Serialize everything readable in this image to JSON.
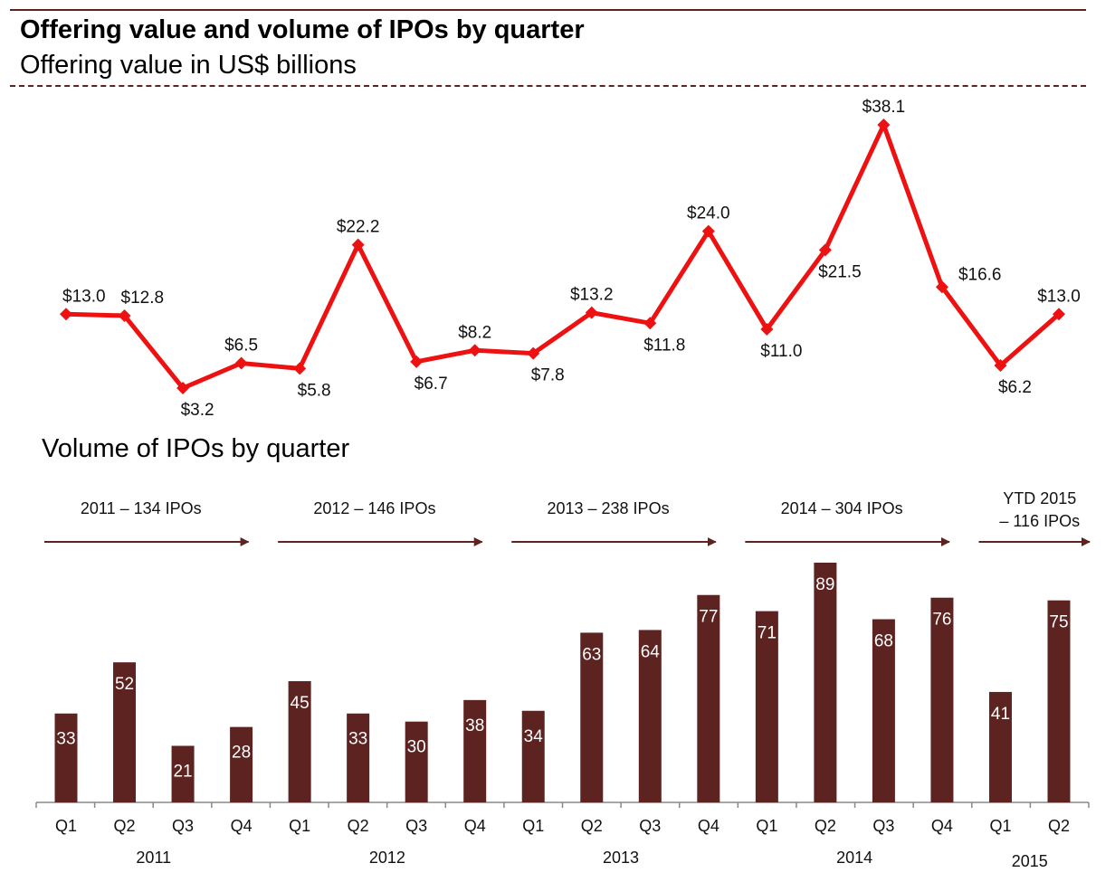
{
  "header": {
    "title": "Offering value and volume of IPOs by quarter",
    "subtitle": "Offering value in US$ billions"
  },
  "volume_section": {
    "title": "Volume of IPOs by quarter"
  },
  "colors": {
    "line": "#ee1111",
    "bar": "#5c2320",
    "rule": "#5c2320",
    "axis": "#888888",
    "bar_label": "#ffffff"
  },
  "chart_data": [
    {
      "type": "line",
      "title": "Offering value in US$ billions",
      "xlabel": "",
      "ylabel": "",
      "categories": [
        "2011 Q1",
        "2011 Q2",
        "2011 Q3",
        "2011 Q4",
        "2012 Q1",
        "2012 Q2",
        "2012 Q3",
        "2012 Q4",
        "2013 Q1",
        "2013 Q2",
        "2013 Q3",
        "2013 Q4",
        "2014 Q1",
        "2014 Q2",
        "2014 Q3",
        "2014 Q4",
        "2015 Q1",
        "2015 Q2"
      ],
      "values": [
        13.0,
        12.8,
        3.2,
        6.5,
        5.8,
        22.2,
        6.7,
        8.2,
        7.8,
        13.2,
        11.8,
        24.0,
        11.0,
        21.5,
        38.1,
        16.6,
        6.2,
        13.0
      ],
      "data_labels": [
        "$13.0",
        "$12.8",
        "$3.2",
        "$6.5",
        "$5.8",
        "$22.2",
        "$6.7",
        "$8.2",
        "$7.8",
        "$13.2",
        "$11.8",
        "$24.0",
        "$11.0",
        "$21.5",
        "$38.1",
        "$16.6",
        "$6.2",
        "$13.0"
      ],
      "label_positions": [
        "above",
        "above",
        "below",
        "above",
        "below",
        "above",
        "below",
        "above",
        "below",
        "above",
        "below",
        "above",
        "below",
        "below",
        "above",
        "right",
        "below",
        "above"
      ],
      "ylim": [
        0,
        40
      ],
      "grid": false,
      "legend": "none"
    },
    {
      "type": "bar",
      "title": "Volume of IPOs by quarter",
      "xlabel": "",
      "ylabel": "",
      "categories": [
        "Q1",
        "Q2",
        "Q3",
        "Q4",
        "Q1",
        "Q2",
        "Q3",
        "Q4",
        "Q1",
        "Q2",
        "Q3",
        "Q4",
        "Q1",
        "Q2",
        "Q3",
        "Q4",
        "Q1",
        "Q2"
      ],
      "values": [
        33,
        52,
        21,
        28,
        45,
        33,
        30,
        38,
        34,
        63,
        64,
        77,
        71,
        89,
        68,
        76,
        41,
        75
      ],
      "year_groups": [
        {
          "label": "2011",
          "start": 0,
          "end": 3
        },
        {
          "label": "2012",
          "start": 4,
          "end": 7
        },
        {
          "label": "2013",
          "start": 8,
          "end": 11
        },
        {
          "label": "2014",
          "start": 12,
          "end": 15
        },
        {
          "label": "2015",
          "start": 16,
          "end": 17
        }
      ],
      "annotations": [
        {
          "lines": [
            "2011 – 134 IPOs"
          ],
          "start": 0,
          "end": 3
        },
        {
          "lines": [
            "2012 – 146 IPOs"
          ],
          "start": 4,
          "end": 7
        },
        {
          "lines": [
            "2013 – 238 IPOs"
          ],
          "start": 8,
          "end": 11
        },
        {
          "lines": [
            "2014 – 304 IPOs"
          ],
          "start": 12,
          "end": 15
        },
        {
          "lines": [
            "YTD 2015",
            " – 116 IPOs"
          ],
          "start": 16,
          "end": 17
        }
      ],
      "ylim": [
        0,
        90
      ],
      "grid": false,
      "legend": "none"
    }
  ]
}
